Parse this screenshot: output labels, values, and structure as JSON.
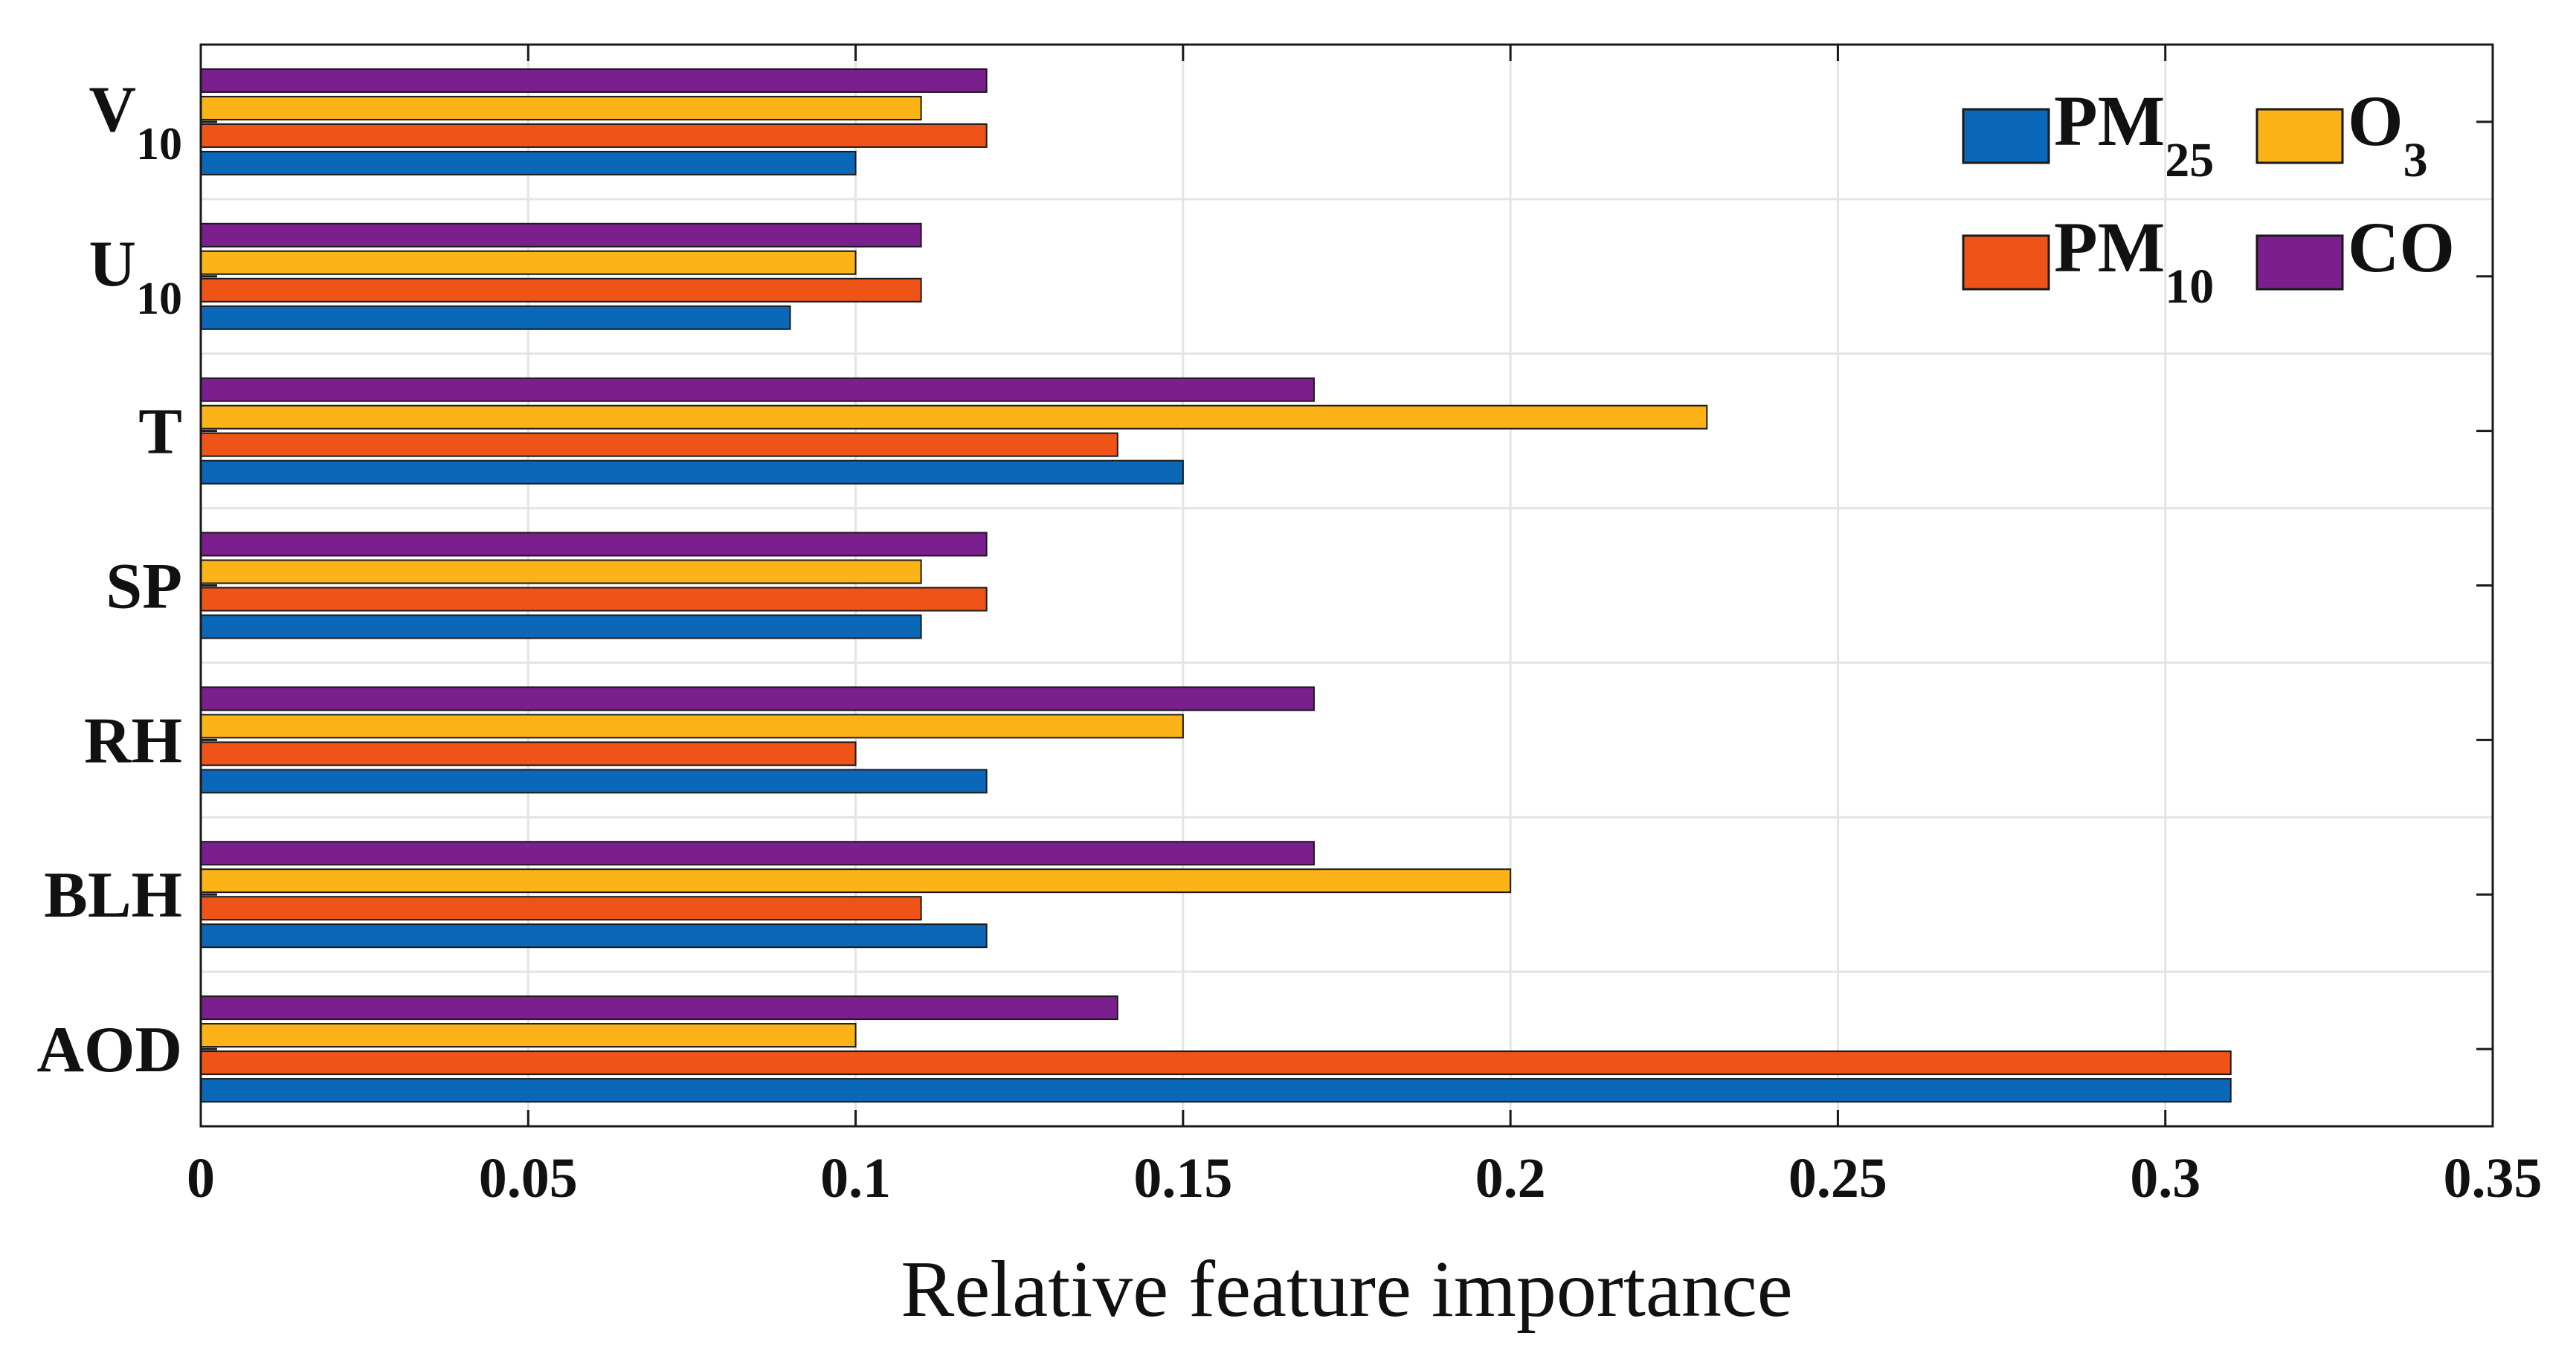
{
  "chart_data": {
    "type": "bar",
    "orientation": "horizontal",
    "title": "",
    "xlabel": "Relative feature importance",
    "ylabel": "",
    "xlim": [
      0,
      0.35
    ],
    "xticks": [
      0,
      0.05,
      0.1,
      0.15,
      0.2,
      0.25,
      0.3,
      0.35
    ],
    "xtick_labels": [
      "0",
      "0.05",
      "0.1",
      "0.15",
      "0.2",
      "0.25",
      "0.3",
      "0.35"
    ],
    "grid": true,
    "legend_position": "top-right",
    "categories": [
      {
        "main": "AOD",
        "sub": ""
      },
      {
        "main": "BLH",
        "sub": ""
      },
      {
        "main": "RH",
        "sub": ""
      },
      {
        "main": "SP",
        "sub": ""
      },
      {
        "main": "T",
        "sub": ""
      },
      {
        "main": "U",
        "sub": "10"
      },
      {
        "main": "V",
        "sub": "10"
      }
    ],
    "series": [
      {
        "key": "pm25",
        "label_main": "PM",
        "label_sub": "25",
        "color": "#0b67b7",
        "values": [
          0.31,
          0.12,
          0.12,
          0.11,
          0.15,
          0.09,
          0.1
        ]
      },
      {
        "key": "pm10",
        "label_main": "PM",
        "label_sub": "10",
        "color": "#ee5418",
        "values": [
          0.31,
          0.11,
          0.1,
          0.12,
          0.14,
          0.11,
          0.12
        ]
      },
      {
        "key": "o3",
        "label_main": "O",
        "label_sub": "3",
        "color": "#fbb318",
        "values": [
          0.1,
          0.2,
          0.15,
          0.11,
          0.23,
          0.1,
          0.11
        ]
      },
      {
        "key": "co",
        "label_main": "CO",
        "label_sub": "",
        "color": "#7b1e8e",
        "values": [
          0.14,
          0.17,
          0.17,
          0.12,
          0.17,
          0.11,
          0.12
        ]
      }
    ]
  }
}
